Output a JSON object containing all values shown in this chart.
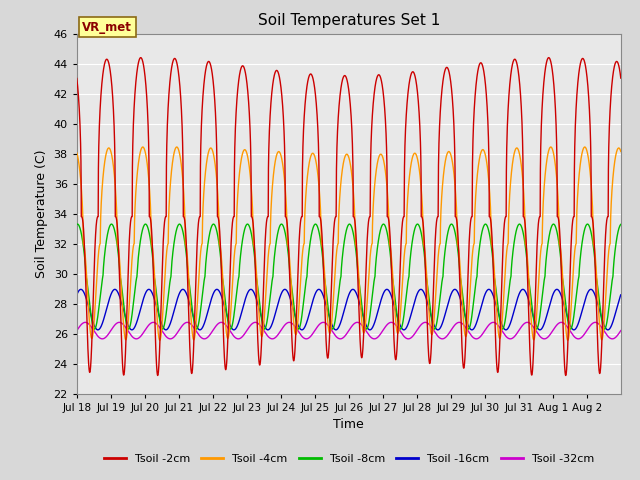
{
  "title": "Soil Temperatures Set 1",
  "xlabel": "Time",
  "ylabel": "Soil Temperature (C)",
  "ylim": [
    22,
    46
  ],
  "yticks": [
    22,
    24,
    26,
    28,
    30,
    32,
    34,
    36,
    38,
    40,
    42,
    44,
    46
  ],
  "fig_bg": "#d8d8d8",
  "plot_bg": "#e8e8e8",
  "grid_color": "#ffffff",
  "legend_label": "VR_met",
  "series_colors": [
    "#cc0000",
    "#ff9900",
    "#00bb00",
    "#0000cc",
    "#cc00cc"
  ],
  "series_labels": [
    "Tsoil -2cm",
    "Tsoil -4cm",
    "Tsoil -8cm",
    "Tsoil -16cm",
    "Tsoil -32cm"
  ],
  "n_days": 16,
  "samples_per_day": 288,
  "xtick_labels": [
    "Jul 18",
    "Jul 19",
    "Jul 20",
    "Jul 21",
    "Jul 22",
    "Jul 23",
    "Jul 24",
    "Jul 25",
    "Jul 26",
    "Jul 27",
    "Jul 28",
    "Jul 29",
    "Jul 30",
    "Jul 31",
    "Aug 1",
    "Aug 2"
  ]
}
